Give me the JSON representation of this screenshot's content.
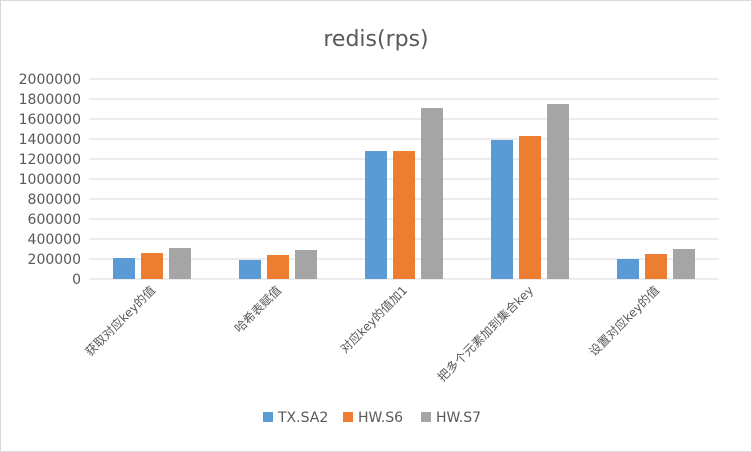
{
  "chart_data": {
    "type": "bar",
    "title": "redis(rps)",
    "xlabel": "",
    "ylabel": "",
    "ylim": [
      0,
      2000000
    ],
    "yticks": [
      0,
      200000,
      400000,
      600000,
      800000,
      1000000,
      1200000,
      1400000,
      1600000,
      1800000,
      2000000
    ],
    "categories": [
      "获取对应key的值",
      "哈希表赋值",
      "对应key的值加1",
      "把多个元素加到集合key",
      "设置对应key的值"
    ],
    "series": [
      {
        "name": "TX.SA2",
        "color": "#5b9bd5",
        "values": [
          210000,
          190000,
          1280000,
          1390000,
          200000
        ]
      },
      {
        "name": "HW.S6",
        "color": "#ed7d31",
        "values": [
          260000,
          240000,
          1280000,
          1430000,
          250000
        ]
      },
      {
        "name": "HW.S7",
        "color": "#a5a5a5",
        "values": [
          310000,
          290000,
          1710000,
          1750000,
          300000
        ]
      }
    ],
    "grid": true,
    "legend_position": "bottom"
  }
}
